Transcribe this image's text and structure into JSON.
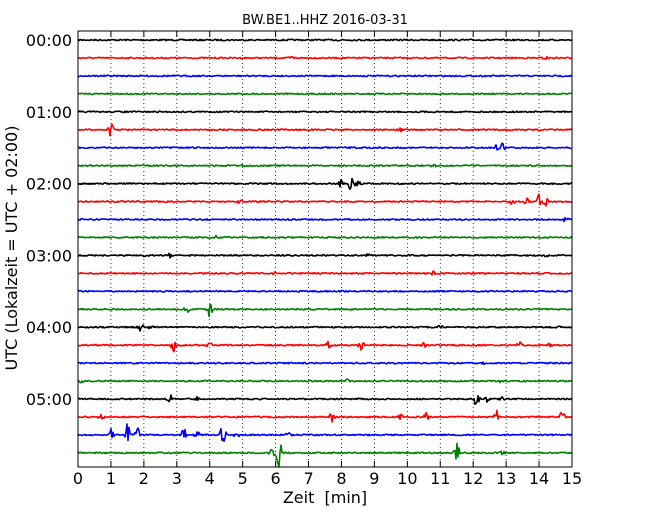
{
  "chart_data": {
    "type": "line",
    "title": "BW.BE1..HHZ 2016-03-31",
    "xlabel": "Zeit  [min]",
    "ylabel": "UTC (Lokalzeit = UTC + 02:00)",
    "xlim": [
      0,
      15
    ],
    "x_ticks": [
      "0",
      "1",
      "2",
      "3",
      "4",
      "5",
      "6",
      "7",
      "8",
      "9",
      "10",
      "11",
      "12",
      "13",
      "14",
      "15"
    ],
    "y_tick_labels": [
      "00:00",
      "01:00",
      "02:00",
      "03:00",
      "04:00",
      "05:00"
    ],
    "grid": "vertical-dotted",
    "trace_colors": [
      "#000000",
      "#ff0000",
      "#0000ff",
      "#008000"
    ],
    "rows": [
      {
        "start": "00:00",
        "color": "#000000",
        "events": [
          [
            8.0,
            0.1
          ]
        ]
      },
      {
        "start": "00:15",
        "color": "#ff0000",
        "events": [
          [
            6.5,
            0.1
          ],
          [
            14.2,
            0.1
          ]
        ]
      },
      {
        "start": "00:30",
        "color": "#0000ff",
        "events": []
      },
      {
        "start": "00:45",
        "color": "#008000",
        "events": []
      },
      {
        "start": "01:00",
        "color": "#000000",
        "events": []
      },
      {
        "start": "01:15",
        "color": "#ff0000",
        "events": [
          [
            1.0,
            0.5
          ],
          [
            9.8,
            0.1
          ]
        ]
      },
      {
        "start": "01:30",
        "color": "#0000ff",
        "events": [
          [
            12.7,
            0.2
          ],
          [
            12.9,
            0.4
          ]
        ]
      },
      {
        "start": "01:45",
        "color": "#008000",
        "events": [
          [
            5.0,
            0.1
          ],
          [
            10.8,
            0.1
          ]
        ]
      },
      {
        "start": "02:00",
        "color": "#000000",
        "events": [
          [
            8.0,
            0.3
          ],
          [
            8.3,
            0.8
          ],
          [
            8.5,
            0.2
          ]
        ]
      },
      {
        "start": "02:15",
        "color": "#ff0000",
        "events": [
          [
            4.9,
            0.1
          ],
          [
            13.2,
            0.3
          ],
          [
            13.6,
            0.3
          ],
          [
            14.0,
            0.6
          ],
          [
            14.2,
            0.3
          ]
        ]
      },
      {
        "start": "02:30",
        "color": "#0000ff",
        "events": [
          [
            14.8,
            0.15
          ]
        ]
      },
      {
        "start": "02:45",
        "color": "#008000",
        "events": [
          [
            4.2,
            0.1
          ]
        ]
      },
      {
        "start": "03:00",
        "color": "#000000",
        "events": [
          [
            2.0,
            0.1
          ],
          [
            2.8,
            0.15
          ],
          [
            8.8,
            0.1
          ],
          [
            14.2,
            0.1
          ]
        ]
      },
      {
        "start": "03:15",
        "color": "#ff0000",
        "events": [
          [
            6.0,
            0.1
          ],
          [
            10.8,
            0.15
          ]
        ]
      },
      {
        "start": "03:30",
        "color": "#0000ff",
        "events": []
      },
      {
        "start": "03:45",
        "color": "#008000",
        "events": [
          [
            3.3,
            0.25
          ],
          [
            4.0,
            0.6
          ]
        ]
      },
      {
        "start": "04:00",
        "color": "#000000",
        "events": [
          [
            1.9,
            0.3
          ],
          [
            2.2,
            0.15
          ],
          [
            11.0,
            0.1
          ],
          [
            14.6,
            0.1
          ]
        ]
      },
      {
        "start": "04:15",
        "color": "#ff0000",
        "events": [
          [
            2.9,
            0.5
          ],
          [
            4.0,
            0.15
          ],
          [
            7.6,
            0.25
          ],
          [
            8.6,
            0.4
          ],
          [
            10.5,
            0.2
          ],
          [
            11.6,
            0.1
          ],
          [
            13.4,
            0.3
          ],
          [
            14.3,
            0.1
          ]
        ]
      },
      {
        "start": "04:30",
        "color": "#0000ff",
        "events": [
          [
            12.3,
            0.1
          ]
        ]
      },
      {
        "start": "04:45",
        "color": "#008000",
        "events": [
          [
            0.1,
            0.15
          ],
          [
            8.2,
            0.25
          ],
          [
            12.8,
            0.1
          ]
        ]
      },
      {
        "start": "05:00",
        "color": "#000000",
        "events": [
          [
            2.8,
            0.3
          ],
          [
            3.6,
            0.15
          ],
          [
            12.1,
            0.6
          ],
          [
            12.4,
            0.3
          ],
          [
            12.9,
            0.2
          ]
        ]
      },
      {
        "start": "05:15",
        "color": "#ff0000",
        "events": [
          [
            0.7,
            0.2
          ],
          [
            7.7,
            0.4
          ],
          [
            9.8,
            0.2
          ],
          [
            10.6,
            0.5
          ],
          [
            12.7,
            0.6
          ],
          [
            14.7,
            0.4
          ]
        ]
      },
      {
        "start": "05:30",
        "color": "#0000ff",
        "events": [
          [
            1.0,
            0.4
          ],
          [
            1.5,
            0.9
          ],
          [
            1.8,
            0.6
          ],
          [
            3.2,
            0.7
          ],
          [
            3.6,
            0.4
          ],
          [
            4.4,
            0.8
          ],
          [
            4.8,
            0.3
          ],
          [
            6.4,
            0.2
          ]
        ]
      },
      {
        "start": "05:45",
        "color": "#008000",
        "events": [
          [
            5.9,
            0.5
          ],
          [
            6.1,
            1.2
          ],
          [
            11.5,
            0.8
          ],
          [
            12.9,
            0.15
          ]
        ]
      }
    ]
  }
}
